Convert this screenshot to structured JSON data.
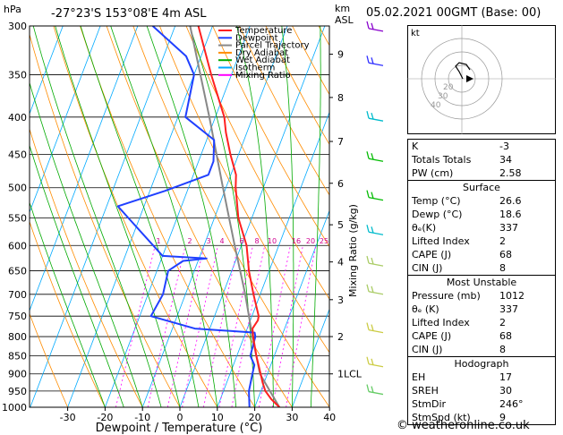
{
  "header": {
    "hpa": "hPa",
    "location": "-27°23'S  153°08'E  4m  ASL",
    "km": "km",
    "asl": "ASL",
    "datetime": "05.02.2021  00GMT  (Base: 00)"
  },
  "chart_data": {
    "type": "line",
    "xlabel": "Dewpoint / Temperature (°C)",
    "ylabel": "hPa",
    "right_label": "Mixing Ratio (g/kg)",
    "pressure_ticks": [
      "300",
      "350",
      "400",
      "450",
      "500",
      "550",
      "600",
      "650",
      "700",
      "750",
      "800",
      "850",
      "900",
      "950",
      "1000"
    ],
    "temp_ticks": [
      "-30",
      "-20",
      "-10",
      "0",
      "10",
      "20",
      "30",
      "40"
    ],
    "km_ticks": [
      {
        "label": "9",
        "p": 328
      },
      {
        "label": "8",
        "p": 376
      },
      {
        "label": "7",
        "p": 432
      },
      {
        "label": "6",
        "p": 493
      },
      {
        "label": "5",
        "p": 562
      },
      {
        "label": "4",
        "p": 632
      },
      {
        "label": "3",
        "p": 712
      },
      {
        "label": "2",
        "p": 800
      },
      {
        "label": "1LCL",
        "p": 900
      }
    ],
    "mixing_ratio_labels": [
      "1",
      "2",
      "3",
      "4",
      "6",
      "8",
      "10",
      "16",
      "20",
      "25"
    ],
    "legend": [
      {
        "name": "Temperature",
        "color": "#ff2020"
      },
      {
        "name": "Dewpoint",
        "color": "#2040ff"
      },
      {
        "name": "Parcel Trajectory",
        "color": "#888888"
      },
      {
        "name": "Dry Adiabat",
        "color": "#ff8c00"
      },
      {
        "name": "Wet Adiabat",
        "color": "#00aa00"
      },
      {
        "name": "Isotherm",
        "color": "#00aaff"
      },
      {
        "name": "Mixing Ratio",
        "color": "#ff00ff"
      }
    ],
    "temperature": [
      {
        "p": 1000,
        "t": 26.6
      },
      {
        "p": 975,
        "t": 23.6
      },
      {
        "p": 950,
        "t": 21.2
      },
      {
        "p": 925,
        "t": 19.6
      },
      {
        "p": 900,
        "t": 18.2
      },
      {
        "p": 850,
        "t": 15.2
      },
      {
        "p": 800,
        "t": 12.4
      },
      {
        "p": 780,
        "t": 11.4
      },
      {
        "p": 760,
        "t": 12.0
      },
      {
        "p": 750,
        "t": 11.8
      },
      {
        "p": 700,
        "t": 8.2
      },
      {
        "p": 650,
        "t": 4.6
      },
      {
        "p": 600,
        "t": 1.4
      },
      {
        "p": 550,
        "t": -3.6
      },
      {
        "p": 500,
        "t": -7.4
      },
      {
        "p": 480,
        "t": -8.6
      },
      {
        "p": 450,
        "t": -12.2
      },
      {
        "p": 420,
        "t": -15.6
      },
      {
        "p": 400,
        "t": -17.6
      },
      {
        "p": 350,
        "t": -25.4
      },
      {
        "p": 300,
        "t": -33.8
      }
    ],
    "dewpoint": [
      {
        "p": 1000,
        "t": 18.6
      },
      {
        "p": 950,
        "t": 16.8
      },
      {
        "p": 900,
        "t": 16.0
      },
      {
        "p": 875,
        "t": 15.6
      },
      {
        "p": 850,
        "t": 13.6
      },
      {
        "p": 800,
        "t": 13.0
      },
      {
        "p": 790,
        "t": 12.4
      },
      {
        "p": 780,
        "t": -4.0
      },
      {
        "p": 750,
        "t": -17.0
      },
      {
        "p": 700,
        "t": -16.0
      },
      {
        "p": 650,
        "t": -17.0
      },
      {
        "p": 630,
        "t": -14.0
      },
      {
        "p": 625,
        "t": -8.0
      },
      {
        "p": 620,
        "t": -20.0
      },
      {
        "p": 550,
        "t": -33.0
      },
      {
        "p": 530,
        "t": -37.0
      },
      {
        "p": 505,
        "t": -26.0
      },
      {
        "p": 480,
        "t": -16.0
      },
      {
        "p": 460,
        "t": -16.0
      },
      {
        "p": 430,
        "t": -18.0
      },
      {
        "p": 400,
        "t": -28.0
      },
      {
        "p": 350,
        "t": -30.0
      },
      {
        "p": 330,
        "t": -34.0
      },
      {
        "p": 300,
        "t": -46.0
      }
    ],
    "parcel": [
      {
        "p": 1000,
        "t": 26.6
      },
      {
        "p": 900,
        "t": 18.0
      },
      {
        "p": 800,
        "t": 12.2
      },
      {
        "p": 700,
        "t": 6.0
      },
      {
        "p": 600,
        "t": -1.8
      },
      {
        "p": 500,
        "t": -10.8
      },
      {
        "p": 400,
        "t": -21.6
      },
      {
        "p": 300,
        "t": -36.0
      }
    ],
    "xlim": [
      -40,
      40
    ],
    "ylim": [
      1000,
      300
    ]
  },
  "hodograph": {
    "label": "kt",
    "rings": [
      "20",
      "30",
      "40"
    ]
  },
  "indices": {
    "top": [
      {
        "label": "K",
        "value": "-3"
      },
      {
        "label": "Totals Totals",
        "value": "34"
      },
      {
        "label": "PW (cm)",
        "value": "2.58"
      }
    ],
    "surface_title": "Surface",
    "surface": [
      {
        "label": "Temp (°C)",
        "value": "26.6"
      },
      {
        "label": "Dewp (°C)",
        "value": "18.6"
      },
      {
        "label": "θₑ(K)",
        "value": "337"
      },
      {
        "label": "Lifted Index",
        "value": "2"
      },
      {
        "label": "CAPE (J)",
        "value": "68"
      },
      {
        "label": "CIN (J)",
        "value": "8"
      }
    ],
    "unstable_title": "Most Unstable",
    "unstable": [
      {
        "label": "Pressure (mb)",
        "value": "1012"
      },
      {
        "label": "θₑ (K)",
        "value": "337"
      },
      {
        "label": "Lifted Index",
        "value": "2"
      },
      {
        "label": "CAPE (J)",
        "value": "68"
      },
      {
        "label": "CIN (J)",
        "value": "8"
      }
    ],
    "hodo_title": "Hodograph",
    "hodo": [
      {
        "label": "EH",
        "value": "17"
      },
      {
        "label": "SREH",
        "value": "30"
      },
      {
        "label": "StmDir",
        "value": "246°"
      },
      {
        "label": "StmSpd (kt)",
        "value": "9"
      }
    ]
  },
  "copyright": "© weatheronline.co.uk"
}
